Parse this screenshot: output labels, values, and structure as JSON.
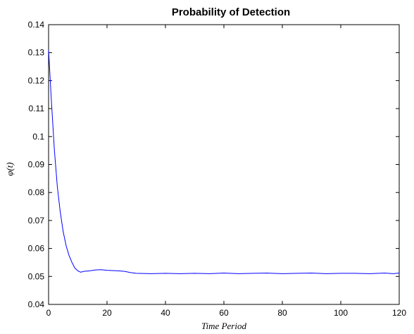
{
  "chart_data": {
    "type": "line",
    "title": "Probability of Detection",
    "xlabel": "Time Period",
    "ylabel": "φ(t)",
    "xlim": [
      0,
      120
    ],
    "ylim": [
      0.04,
      0.14
    ],
    "xticks": [
      "0",
      "20",
      "40",
      "60",
      "80",
      "100",
      "120"
    ],
    "yticks": [
      "0.04",
      "0.05",
      "0.06",
      "0.07",
      "0.08",
      "0.09",
      "0.1",
      "0.11",
      "0.12",
      "0.13",
      "0.14"
    ],
    "grid": false,
    "series": [
      {
        "color": "#0000ff",
        "x": [
          0,
          1,
          2,
          3,
          4,
          5,
          6,
          7,
          8,
          9,
          10,
          11,
          12,
          14,
          16,
          18,
          20,
          22,
          24,
          26,
          28,
          30,
          35,
          40,
          45,
          50,
          55,
          60,
          65,
          70,
          75,
          80,
          85,
          90,
          95,
          100,
          105,
          110,
          115,
          118,
          120
        ],
        "y": [
          0.131,
          0.112,
          0.095,
          0.082,
          0.073,
          0.066,
          0.061,
          0.0575,
          0.055,
          0.053,
          0.052,
          0.0515,
          0.0518,
          0.052,
          0.0523,
          0.0524,
          0.0522,
          0.0521,
          0.052,
          0.0518,
          0.0514,
          0.0511,
          0.051,
          0.0511,
          0.051,
          0.0511,
          0.051,
          0.0512,
          0.051,
          0.0511,
          0.0512,
          0.051,
          0.0511,
          0.0512,
          0.051,
          0.0511,
          0.0511,
          0.051,
          0.0512,
          0.051,
          0.0512
        ]
      }
    ]
  }
}
